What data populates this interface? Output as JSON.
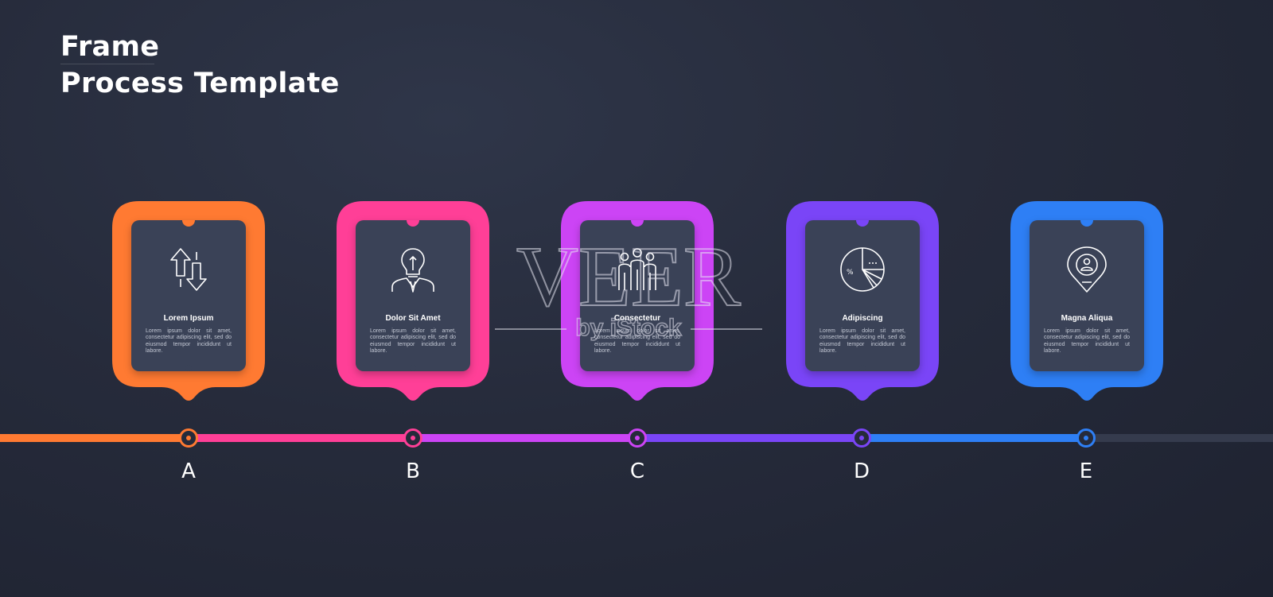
{
  "title": {
    "line1": "Frame",
    "line2": "Process Template"
  },
  "steps": [
    {
      "letter": "A",
      "heading": "Lorem Ipsum",
      "text": "Lorem ipsum dolor sit amet, consectetur adipiscing elit, sed do eiusmod tempor incididunt ut labore.",
      "color": "#ff7a32",
      "icon": "up-down-arrows-icon"
    },
    {
      "letter": "B",
      "heading": "Dolor Sit Amet",
      "text": "Lorem ipsum dolor sit amet, consectetur adipiscing elit, sed do eiusmod tempor incididunt ut labore.",
      "color": "#ff3f97",
      "icon": "businessman-lightbulb-icon"
    },
    {
      "letter": "C",
      "heading": "Consectetur",
      "text": "Lorem ipsum dolor sit amet, consectetur adipiscing elit, sed do eiusmod tempor incididunt ut labore.",
      "color": "#cc44f5",
      "icon": "team-people-icon"
    },
    {
      "letter": "D",
      "heading": "Adipiscing",
      "text": "Lorem ipsum dolor sit amet, consectetur adipiscing elit, sed do eiusmod tempor incididunt ut labore.",
      "color": "#7a45f7",
      "icon": "pie-chart-icon"
    },
    {
      "letter": "E",
      "heading": "Magna Aliqua",
      "text": "Lorem ipsum dolor sit amet, consectetur adipiscing elit, sed do eiusmod tempor incididunt ut labore.",
      "color": "#2e7ff5",
      "icon": "location-pin-user-icon"
    }
  ],
  "timeline_tail_color": "#353b4d",
  "watermark": {
    "line1": "VEER",
    "line2": "by iStock"
  }
}
